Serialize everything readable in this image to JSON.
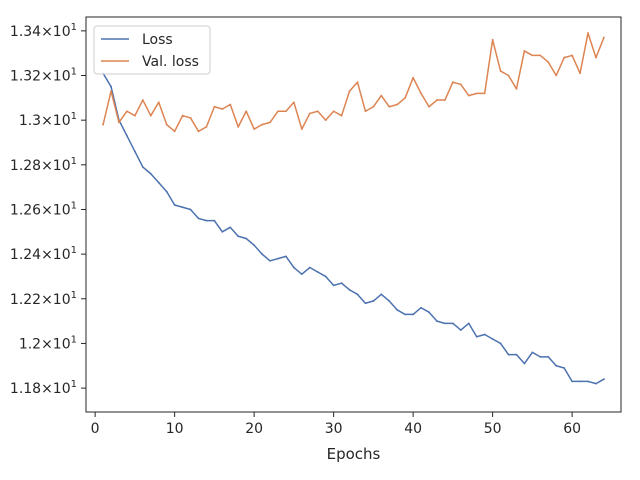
{
  "chart_data": {
    "type": "line",
    "title": "",
    "xlabel": "Epochs",
    "ylabel": "",
    "xlim": [
      -1.15,
      66.15
    ],
    "ylim": [
      11.693,
      13.462
    ],
    "grid": false,
    "legend_position": "top-left",
    "x_ticks": [
      {
        "value": 0,
        "label": "0"
      },
      {
        "value": 10,
        "label": "10"
      },
      {
        "value": 20,
        "label": "20"
      },
      {
        "value": 30,
        "label": "30"
      },
      {
        "value": 40,
        "label": "40"
      },
      {
        "value": 50,
        "label": "50"
      },
      {
        "value": 60,
        "label": "60"
      }
    ],
    "y_ticks": [
      {
        "value": 11.8,
        "base": "1.18",
        "exp": "1"
      },
      {
        "value": 12.0,
        "base": "1.2",
        "exp": "1"
      },
      {
        "value": 12.2,
        "base": "1.22",
        "exp": "1"
      },
      {
        "value": 12.4,
        "base": "1.24",
        "exp": "1"
      },
      {
        "value": 12.6,
        "base": "1.26",
        "exp": "1"
      },
      {
        "value": 12.8,
        "base": "1.28",
        "exp": "1"
      },
      {
        "value": 13.0,
        "base": "1.3",
        "exp": "1"
      },
      {
        "value": 13.2,
        "base": "1.32",
        "exp": "1"
      },
      {
        "value": 13.4,
        "base": "1.34",
        "exp": "1"
      }
    ],
    "tick_times": "×10",
    "x": [
      1,
      2,
      3,
      4,
      5,
      6,
      7,
      8,
      9,
      10,
      11,
      12,
      13,
      14,
      15,
      16,
      17,
      18,
      19,
      20,
      21,
      22,
      23,
      24,
      25,
      26,
      27,
      28,
      29,
      30,
      31,
      32,
      33,
      34,
      35,
      36,
      37,
      38,
      39,
      40,
      41,
      42,
      43,
      44,
      45,
      46,
      47,
      48,
      49,
      50,
      51,
      52,
      53,
      54,
      55,
      56,
      57,
      58,
      59,
      60,
      61,
      62,
      63,
      64
    ],
    "series": [
      {
        "name": "Loss",
        "color": "#4c72b0",
        "values": [
          13.21,
          13.15,
          13.0,
          12.93,
          12.86,
          12.79,
          12.76,
          12.72,
          12.68,
          12.62,
          12.61,
          12.6,
          12.56,
          12.55,
          12.55,
          12.5,
          12.52,
          12.48,
          12.47,
          12.44,
          12.4,
          12.37,
          12.38,
          12.39,
          12.34,
          12.31,
          12.34,
          12.32,
          12.3,
          12.26,
          12.27,
          12.24,
          12.22,
          12.18,
          12.19,
          12.22,
          12.19,
          12.15,
          12.13,
          12.13,
          12.16,
          12.14,
          12.1,
          12.09,
          12.09,
          12.06,
          12.09,
          12.03,
          12.04,
          12.02,
          12.0,
          11.95,
          11.95,
          11.91,
          11.96,
          11.94,
          11.94,
          11.9,
          11.89,
          11.83,
          11.83,
          11.83,
          11.82,
          11.84
        ]
      },
      {
        "name": "Val. loss",
        "color": "#dd8452",
        "values": [
          12.98,
          13.13,
          12.99,
          13.04,
          13.02,
          13.09,
          13.02,
          13.08,
          12.98,
          12.95,
          13.02,
          13.01,
          12.95,
          12.97,
          13.06,
          13.05,
          13.07,
          12.97,
          13.04,
          12.96,
          12.98,
          12.99,
          13.04,
          13.04,
          13.08,
          12.96,
          13.03,
          13.04,
          13.0,
          13.04,
          13.02,
          13.13,
          13.17,
          13.04,
          13.06,
          13.11,
          13.06,
          13.07,
          13.1,
          13.19,
          13.12,
          13.06,
          13.09,
          13.09,
          13.17,
          13.16,
          13.11,
          13.12,
          13.12,
          13.36,
          13.22,
          13.2,
          13.14,
          13.31,
          13.29,
          13.29,
          13.26,
          13.2,
          13.28,
          13.29,
          13.21,
          13.39,
          13.28,
          13.37
        ]
      }
    ]
  }
}
